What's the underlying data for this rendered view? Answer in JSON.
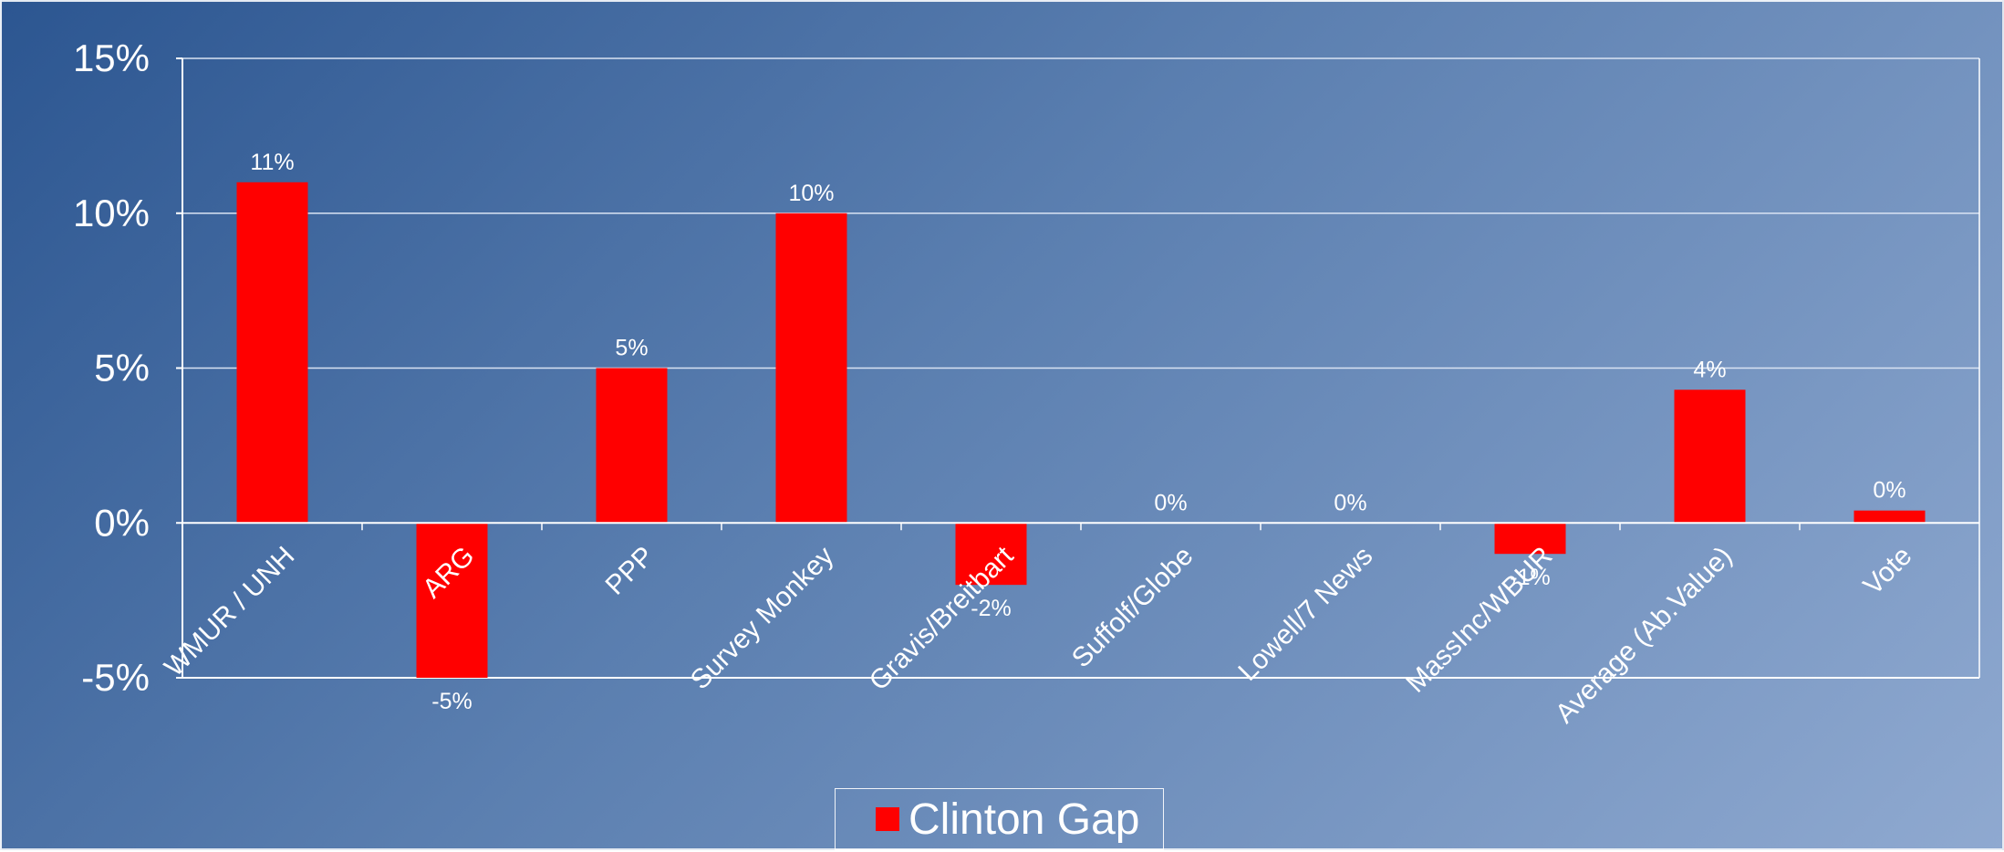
{
  "chart_data": {
    "type": "bar",
    "categories": [
      "WMUR / UNH",
      "ARG",
      "PPP",
      "Survey Monkey",
      "Gravis/Breitbart",
      "Suffolf/Globe",
      "Lowell/7 News",
      "MassInc/WBUR",
      "Average (Ab.Value)",
      "Vote"
    ],
    "series": [
      {
        "name": "Clinton Gap",
        "values": [
          11,
          -5,
          5,
          10,
          -2,
          0,
          0,
          -1,
          4.3,
          0.4
        ],
        "data_labels": [
          "11%",
          "-5%",
          "5%",
          "10%",
          "-2%",
          "0%",
          "0%",
          "-1%",
          "4%",
          "0%"
        ],
        "color": "#ff0000"
      }
    ],
    "ylim": [
      -5,
      15
    ],
    "yticks": [
      -5,
      0,
      5,
      10,
      15
    ],
    "ytick_labels": [
      "-5%",
      "0%",
      "5%",
      "10%",
      "15%"
    ],
    "grid": true,
    "legend": "bottom"
  },
  "colors": {
    "bar": "#ff0000",
    "text": "#ffffff",
    "grid": "#d9e3f3"
  },
  "legend": {
    "label": "Clinton Gap"
  }
}
